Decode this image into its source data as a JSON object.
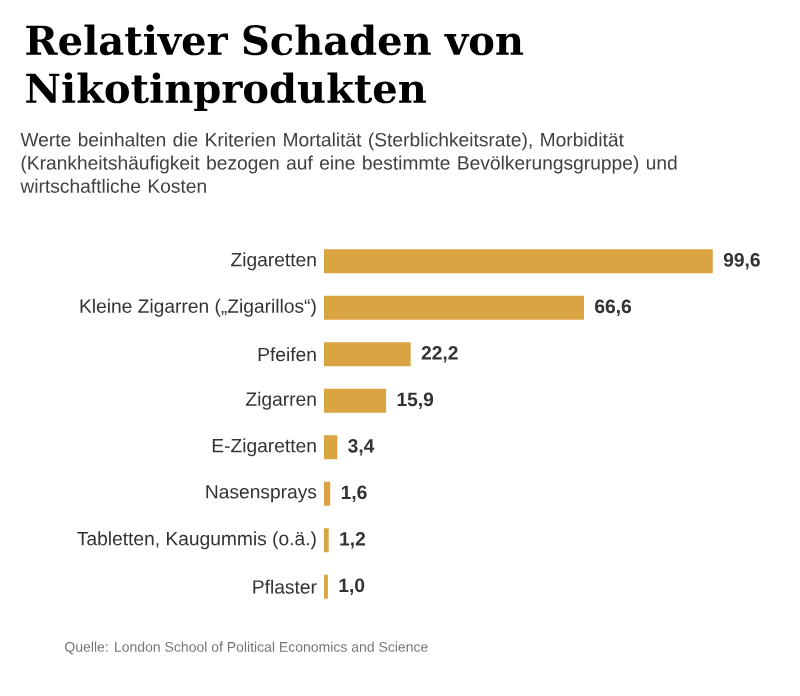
{
  "chart_data": {
    "type": "bar",
    "orientation": "horizontal",
    "title": "Relativer Schaden von Nikotinprodukten",
    "subtitle": "Werte beinhalten die Kriterien Mortalität (Sterblichkeitsrate), Morbidität (Krankheitshäufigkeit bezogen auf eine bestimmte Bevölkerungsgruppe) und wirtschaftliche Kosten",
    "categories": [
      "Zigaretten",
      "Kleine Zigarren („Zigarillos“)",
      "Pfeifen",
      "Zigarren",
      "E-Zigaretten",
      "Nasensprays",
      "Tabletten, Kaugummis (o.ä.)",
      "Pflaster"
    ],
    "values": [
      99.6,
      66.6,
      22.2,
      15.9,
      3.4,
      1.6,
      1.2,
      1.0
    ],
    "value_labels": [
      "99,6",
      "66,6",
      "22,2",
      "15,9",
      "3,4",
      "1,6",
      "1,2",
      "1,0"
    ],
    "color": "#d9a441",
    "annotations": [
      "Quelle: London School of Political Economics and Science"
    ]
  }
}
